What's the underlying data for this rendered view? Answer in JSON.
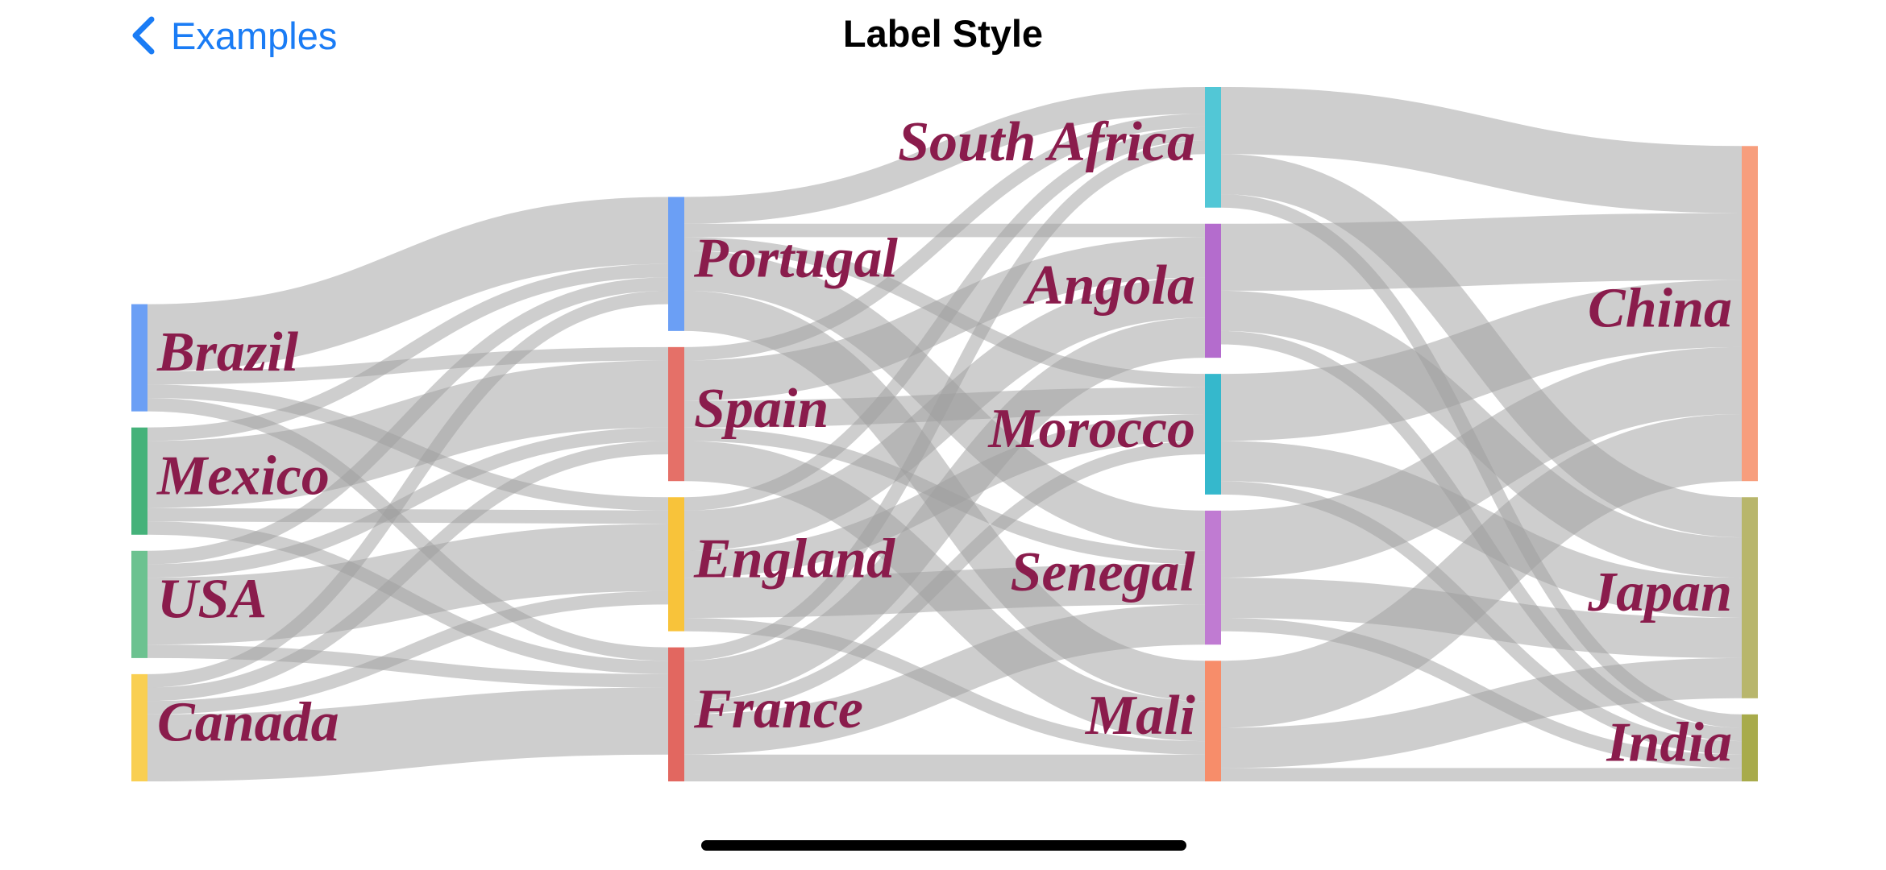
{
  "nav": {
    "back_label": "Examples",
    "title": "Label Style"
  },
  "icons": {
    "back": "chevron-left-icon"
  },
  "colors": {
    "accent": "#1a7cf5",
    "link": "#9e9e9e",
    "label": "#8a1c4c"
  },
  "chart_data": {
    "type": "sankey",
    "columns": [
      [
        "Brazil",
        "Mexico",
        "USA",
        "Canada"
      ],
      [
        "Portugal",
        "Spain",
        "England",
        "France"
      ],
      [
        "South Africa",
        "Angola",
        "Morocco",
        "Senegal",
        "Mali"
      ],
      [
        "China",
        "Japan",
        "India"
      ]
    ],
    "node_colors": {
      "Brazil": "#6b9ff5",
      "Mexico": "#45b27a",
      "USA": "#6cc290",
      "Canada": "#f9cf52",
      "Portugal": "#6b9ff5",
      "Spain": "#e57068",
      "England": "#f8c33a",
      "France": "#e26760",
      "South Africa": "#52c7d6",
      "Angola": "#b46ccd",
      "Morocco": "#35b8cc",
      "Senegal": "#c07bd2",
      "Mali": "#f78d6a",
      "China": "#f79e7d",
      "Japan": "#b8b66c",
      "India": "#a8ab4b"
    },
    "links": [
      {
        "source": "Brazil",
        "target": "Portugal",
        "value": 5
      },
      {
        "source": "Brazil",
        "target": "Spain",
        "value": 1
      },
      {
        "source": "Brazil",
        "target": "England",
        "value": 1
      },
      {
        "source": "Brazil",
        "target": "France",
        "value": 1
      },
      {
        "source": "Mexico",
        "target": "Portugal",
        "value": 1
      },
      {
        "source": "Mexico",
        "target": "Spain",
        "value": 5
      },
      {
        "source": "Mexico",
        "target": "England",
        "value": 1
      },
      {
        "source": "Mexico",
        "target": "France",
        "value": 1
      },
      {
        "source": "USA",
        "target": "Portugal",
        "value": 1
      },
      {
        "source": "USA",
        "target": "Spain",
        "value": 1
      },
      {
        "source": "USA",
        "target": "England",
        "value": 5
      },
      {
        "source": "USA",
        "target": "France",
        "value": 1
      },
      {
        "source": "Canada",
        "target": "Portugal",
        "value": 1
      },
      {
        "source": "Canada",
        "target": "Spain",
        "value": 1
      },
      {
        "source": "Canada",
        "target": "England",
        "value": 1
      },
      {
        "source": "Canada",
        "target": "France",
        "value": 5
      },
      {
        "source": "Portugal",
        "target": "South Africa",
        "value": 2
      },
      {
        "source": "Portugal",
        "target": "Angola",
        "value": 1
      },
      {
        "source": "Portugal",
        "target": "Morocco",
        "value": 1
      },
      {
        "source": "Portugal",
        "target": "Senegal",
        "value": 3
      },
      {
        "source": "Portugal",
        "target": "Mali",
        "value": 3
      },
      {
        "source": "Spain",
        "target": "South Africa",
        "value": 1
      },
      {
        "source": "Spain",
        "target": "Angola",
        "value": 3
      },
      {
        "source": "Spain",
        "target": "Morocco",
        "value": 2
      },
      {
        "source": "Spain",
        "target": "Senegal",
        "value": 1
      },
      {
        "source": "Spain",
        "target": "Mali",
        "value": 3
      },
      {
        "source": "England",
        "target": "South Africa",
        "value": 1
      },
      {
        "source": "England",
        "target": "Angola",
        "value": 3
      },
      {
        "source": "England",
        "target": "Morocco",
        "value": 2
      },
      {
        "source": "England",
        "target": "Senegal",
        "value": 3
      },
      {
        "source": "England",
        "target": "Mali",
        "value": 1
      },
      {
        "source": "France",
        "target": "South Africa",
        "value": 1
      },
      {
        "source": "France",
        "target": "Angola",
        "value": 3
      },
      {
        "source": "France",
        "target": "Morocco",
        "value": 1
      },
      {
        "source": "France",
        "target": "Senegal",
        "value": 3
      },
      {
        "source": "France",
        "target": "Mali",
        "value": 2
      },
      {
        "source": "South Africa",
        "target": "China",
        "value": 5
      },
      {
        "source": "South Africa",
        "target": "India",
        "value": 1
      },
      {
        "source": "South Africa",
        "target": "Japan",
        "value": 3
      },
      {
        "source": "Angola",
        "target": "China",
        "value": 5
      },
      {
        "source": "Angola",
        "target": "India",
        "value": 1
      },
      {
        "source": "Angola",
        "target": "Japan",
        "value": 3
      },
      {
        "source": "Morocco",
        "target": "China",
        "value": 5
      },
      {
        "source": "Morocco",
        "target": "India",
        "value": 1
      },
      {
        "source": "Morocco",
        "target": "Japan",
        "value": 3
      },
      {
        "source": "Senegal",
        "target": "China",
        "value": 5
      },
      {
        "source": "Senegal",
        "target": "India",
        "value": 1
      },
      {
        "source": "Senegal",
        "target": "Japan",
        "value": 3
      },
      {
        "source": "Mali",
        "target": "China",
        "value": 5
      },
      {
        "source": "Mali",
        "target": "India",
        "value": 1
      },
      {
        "source": "Mali",
        "target": "Japan",
        "value": 3
      }
    ]
  }
}
